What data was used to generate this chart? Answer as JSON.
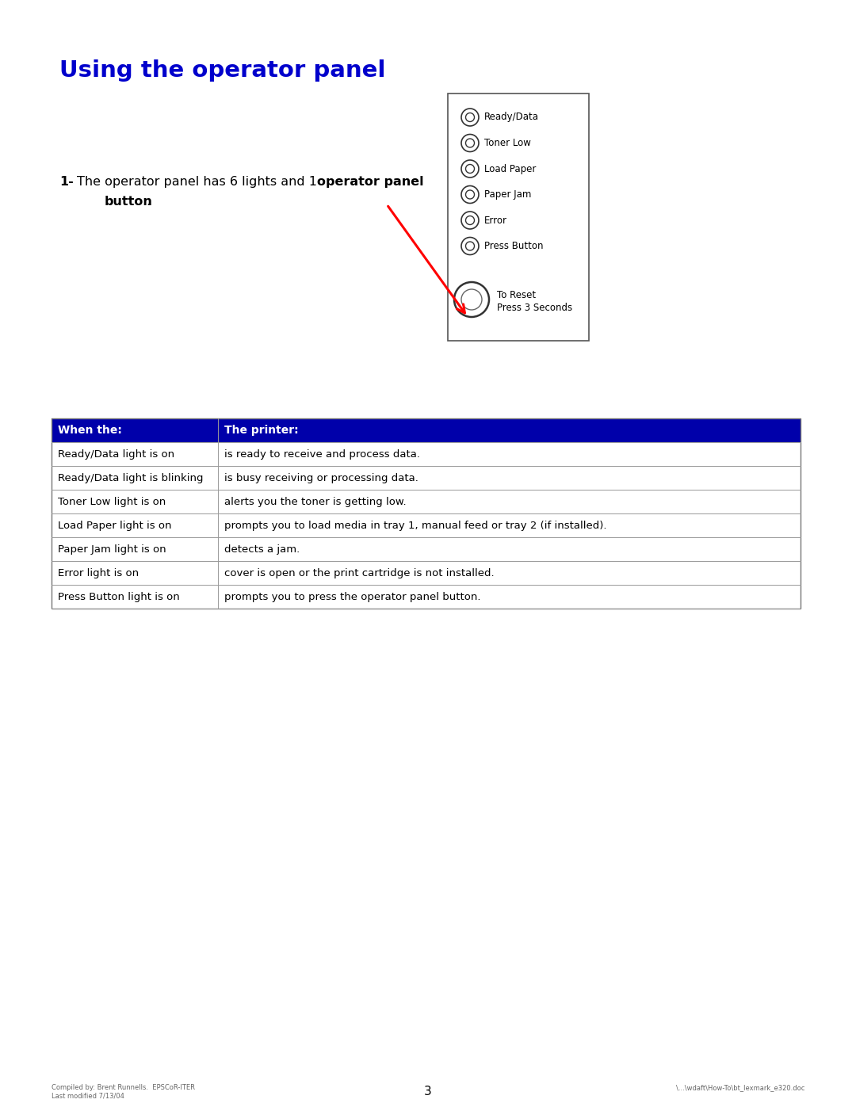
{
  "title": "Using the operator panel",
  "title_color": "#0000CC",
  "title_fontsize": 21,
  "panel_lights": [
    "Ready/Data",
    "Toner Low",
    "Load Paper",
    "Paper Jam",
    "Error",
    "Press Button"
  ],
  "panel_button_label": "To Reset\nPress 3 Seconds",
  "table_header": [
    "When the:",
    "The printer:"
  ],
  "table_header_bg": "#0000AA",
  "table_header_fg": "#FFFFFF",
  "table_rows": [
    [
      "Ready/Data light is on",
      "is ready to receive and process data."
    ],
    [
      "Ready/Data light is blinking",
      "is busy receiving or processing data."
    ],
    [
      "Toner Low light is on",
      "alerts you the toner is getting low."
    ],
    [
      "Load Paper light is on",
      "prompts you to load media in tray 1, manual feed or tray 2 (if installed)."
    ],
    [
      "Paper Jam light is on",
      "detects a jam."
    ],
    [
      "Error light is on",
      "cover is open or the print cartridge is not installed."
    ],
    [
      "Press Button light is on",
      "prompts you to press the operator panel button."
    ]
  ],
  "footer_left": "Compiled by: Brent Runnells.  EPSCoR-ITER\nLast modified 7/13/04",
  "footer_center": "3",
  "footer_right": "\\...\\wdaft\\How-To\\bt_lexmark_e320.doc",
  "bg_color": "#FFFFFF"
}
